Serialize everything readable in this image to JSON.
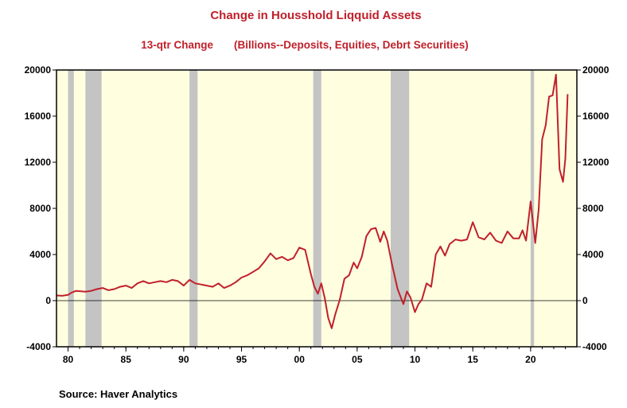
{
  "colors": {
    "title": "#c0202a",
    "line": "#c0202a",
    "plot_bg": "#ffffe0",
    "recession": "#c4c4c4",
    "axis": "#000000"
  },
  "chart_data": {
    "type": "line",
    "title": "Change in Housshold Liqquid Assets",
    "subtitle_left": "13-qtr Change",
    "subtitle_right": "(Billions--Deposits, Equities, Debrt Securities)",
    "xlabel": "",
    "ylabel": "",
    "source": "Source:  Haver Analytics",
    "xlim": [
      1979,
      2024
    ],
    "ylim": [
      -4000,
      20000
    ],
    "y_ticks": [
      20000,
      16000,
      12000,
      8000,
      4000,
      0,
      -4000
    ],
    "x_ticks": [
      {
        "value": 1980,
        "label": "80"
      },
      {
        "value": 1985,
        "label": "85"
      },
      {
        "value": 1990,
        "label": "90"
      },
      {
        "value": 1995,
        "label": "95"
      },
      {
        "value": 2000,
        "label": "00"
      },
      {
        "value": 2005,
        "label": "05"
      },
      {
        "value": 2010,
        "label": "10"
      },
      {
        "value": 2015,
        "label": "15"
      },
      {
        "value": 2020,
        "label": "20"
      }
    ],
    "recessions": [
      [
        1980.0,
        1980.5
      ],
      [
        1981.5,
        1982.9
      ],
      [
        1990.5,
        1991.2
      ],
      [
        2001.2,
        2001.9
      ],
      [
        2007.9,
        2009.5
      ],
      [
        2020.0,
        2020.3
      ]
    ],
    "series": [
      {
        "x": [
          1979.0,
          1979.5,
          1980.0,
          1980.3,
          1980.7,
          1981.0,
          1981.5,
          1982.0,
          1982.5,
          1983.0,
          1983.5,
          1984.0,
          1984.5,
          1985.0,
          1985.5,
          1986.0,
          1986.5,
          1987.0,
          1987.5,
          1988.0,
          1988.5,
          1989.0,
          1989.5,
          1990.0,
          1990.5,
          1991.0,
          1991.5,
          1992.0,
          1992.5,
          1993.0,
          1993.5,
          1994.0,
          1994.5,
          1995.0,
          1995.5,
          1996.0,
          1996.5,
          1997.0,
          1997.5,
          1998.0,
          1998.5,
          1999.0,
          1999.5,
          2000.0,
          2000.5,
          2001.0,
          2001.3,
          2001.6,
          2001.9,
          2002.2,
          2002.5,
          2002.8,
          2003.1,
          2003.5,
          2003.9,
          2004.3,
          2004.7,
          2005.0,
          2005.4,
          2005.8,
          2006.2,
          2006.6,
          2007.0,
          2007.3,
          2007.6,
          2008.0,
          2008.5,
          2009.0,
          2009.3,
          2009.6,
          2010.0,
          2010.3,
          2010.6,
          2011.0,
          2011.4,
          2011.8,
          2012.2,
          2012.6,
          2013.0,
          2013.5,
          2014.0,
          2014.5,
          2015.0,
          2015.5,
          2016.0,
          2016.5,
          2017.0,
          2017.5,
          2018.0,
          2018.5,
          2019.0,
          2019.3,
          2019.6,
          2020.0,
          2020.4,
          2020.7,
          2021.0,
          2021.3,
          2021.6,
          2021.9,
          2022.2,
          2022.5,
          2022.8,
          2023.0,
          2023.2
        ],
        "values": [
          450,
          420,
          500,
          700,
          850,
          820,
          780,
          850,
          1000,
          1100,
          900,
          1000,
          1200,
          1300,
          1100,
          1500,
          1700,
          1500,
          1600,
          1700,
          1600,
          1800,
          1700,
          1300,
          1800,
          1500,
          1400,
          1300,
          1200,
          1500,
          1100,
          1300,
          1600,
          2000,
          2200,
          2500,
          2800,
          3400,
          4100,
          3600,
          3800,
          3500,
          3700,
          4600,
          4400,
          2300,
          1200,
          600,
          1500,
          200,
          -1500,
          -2400,
          -1200,
          100,
          1900,
          2200,
          3300,
          2800,
          3800,
          5600,
          6200,
          6300,
          5100,
          6000,
          5200,
          3200,
          1000,
          -300,
          800,
          300,
          -1000,
          -300,
          100,
          1500,
          1200,
          4000,
          4700,
          3900,
          4900,
          5300,
          5200,
          5300,
          6800,
          5500,
          5300,
          5900,
          5200,
          5000,
          6000,
          5400,
          5400,
          6100,
          5200,
          8600,
          5000,
          7900,
          14000,
          15200,
          17700,
          17800,
          19600,
          11400,
          10300,
          12300,
          17900
        ]
      }
    ],
    "grid": false,
    "legend": "none"
  }
}
